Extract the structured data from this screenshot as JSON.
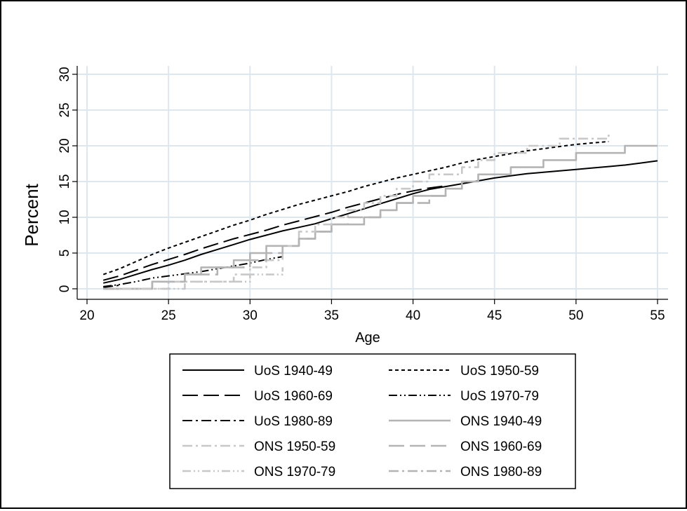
{
  "chart_data": {
    "type": "line",
    "title": "",
    "xlabel": "Age",
    "ylabel": "Percent",
    "xlim": [
      20,
      55
    ],
    "ylim": [
      0,
      30
    ],
    "xticks": [
      20,
      25,
      30,
      35,
      40,
      45,
      50,
      55
    ],
    "yticks": [
      0,
      5,
      10,
      15,
      20,
      25,
      30
    ],
    "grid": true,
    "legend_position": "bottom",
    "colors": {
      "uos": "#000000",
      "ons": "#b4b4b4",
      "grid": "#dde7ef",
      "axis": "#000000"
    },
    "series": [
      {
        "name": "UoS 1940-49",
        "style": "solid",
        "color": "#000000",
        "x": [
          21,
          22,
          23,
          24,
          25,
          26,
          27,
          28,
          29,
          30,
          31,
          32,
          33,
          34,
          35,
          36,
          37,
          38,
          39,
          40,
          41,
          42,
          43,
          44,
          45,
          46,
          47,
          48,
          49,
          50,
          51,
          52,
          53,
          54,
          55
        ],
        "y": [
          0.8,
          1.3,
          2.0,
          2.7,
          3.3,
          4.0,
          4.8,
          5.5,
          6.2,
          6.9,
          7.5,
          8.1,
          8.6,
          9.1,
          9.8,
          10.5,
          11.2,
          11.9,
          12.6,
          13.3,
          13.9,
          14.3,
          14.7,
          15.1,
          15.5,
          15.8,
          16.1,
          16.3,
          16.5,
          16.7,
          16.9,
          17.1,
          17.3,
          17.6,
          17.9
        ]
      },
      {
        "name": "UoS 1950-59",
        "style": "dot",
        "color": "#000000",
        "x": [
          21,
          22,
          23,
          24,
          25,
          26,
          27,
          28,
          29,
          30,
          31,
          32,
          33,
          34,
          35,
          36,
          37,
          38,
          39,
          40,
          41,
          42,
          43,
          44,
          45,
          46,
          47,
          48,
          49,
          50,
          51,
          52
        ],
        "y": [
          2.0,
          2.8,
          3.8,
          4.8,
          5.7,
          6.5,
          7.3,
          8.1,
          8.9,
          9.6,
          10.4,
          11.1,
          11.8,
          12.4,
          13.0,
          13.6,
          14.3,
          14.9,
          15.5,
          16.0,
          16.5,
          17.0,
          17.6,
          18.1,
          18.5,
          18.9,
          19.3,
          19.6,
          19.9,
          20.2,
          20.4,
          20.6
        ]
      },
      {
        "name": "UoS 1960-69",
        "style": "longdash",
        "color": "#000000",
        "x": [
          21,
          22,
          23,
          24,
          25,
          26,
          27,
          28,
          29,
          30,
          31,
          32,
          33,
          34,
          35,
          36,
          37,
          38,
          39,
          40,
          41,
          42
        ],
        "y": [
          1.2,
          1.8,
          2.6,
          3.4,
          4.1,
          4.8,
          5.6,
          6.3,
          7.0,
          7.6,
          8.2,
          8.9,
          9.5,
          10.1,
          10.7,
          11.4,
          12.0,
          12.6,
          13.2,
          13.7,
          14.1,
          14.4
        ]
      },
      {
        "name": "UoS 1970-79",
        "style": "dashdotdot",
        "color": "#000000",
        "x": [
          21,
          22,
          23,
          24,
          25,
          26,
          27,
          28,
          29,
          30,
          31,
          32
        ],
        "y": [
          0.3,
          0.6,
          1.0,
          1.5,
          1.8,
          2.1,
          2.4,
          2.8,
          3.2,
          3.6,
          4.1,
          4.5
        ]
      },
      {
        "name": "UoS 1980-89",
        "style": "dashdot",
        "color": "#000000",
        "x": [
          21,
          22
        ],
        "y": [
          0.2,
          0.5
        ]
      },
      {
        "name": "ONS 1940-49",
        "style": "solid",
        "color": "#b4b4b4",
        "x": [
          21,
          22,
          23,
          24,
          25,
          26,
          27,
          28,
          29,
          30,
          31,
          32,
          33,
          34,
          35,
          36,
          37,
          38,
          39,
          40,
          41,
          42,
          43,
          44,
          45,
          46,
          47,
          48,
          49,
          50,
          51,
          52,
          53,
          54,
          55
        ],
        "y": [
          0,
          0,
          0,
          1,
          1,
          2,
          3,
          3,
          4,
          5,
          6,
          6,
          7,
          8,
          9,
          9,
          10,
          11,
          12,
          13,
          13,
          14,
          15,
          16,
          16,
          17,
          17,
          18,
          18,
          19,
          19,
          19,
          20,
          20,
          20
        ],
        "step": true
      },
      {
        "name": "ONS 1950-59",
        "style": "dashdot",
        "color": "#c8c8c8",
        "x": [
          21,
          22,
          23,
          24,
          25,
          26,
          27,
          28,
          29,
          30,
          31,
          32,
          33,
          34,
          35,
          36,
          37,
          38,
          39,
          40,
          41,
          42,
          43,
          44,
          45,
          46,
          47,
          48,
          49,
          50,
          51,
          52
        ],
        "y": [
          0,
          0,
          0,
          0,
          1,
          1,
          1,
          1,
          2,
          3,
          4,
          6,
          8,
          9,
          10,
          11,
          12,
          13,
          14,
          15,
          16,
          16,
          17,
          18,
          19,
          19,
          20,
          20,
          21,
          21,
          21,
          22
        ],
        "step": true
      },
      {
        "name": "ONS 1960-69",
        "style": "longdash",
        "color": "#b4b4b4",
        "x": [
          21,
          22,
          23,
          24,
          25,
          26,
          27,
          28,
          29,
          30,
          31,
          32,
          33,
          34,
          35,
          36,
          37,
          38,
          39,
          40,
          41,
          42
        ],
        "y": [
          0,
          0,
          0,
          1,
          1,
          2,
          2,
          3,
          3,
          4,
          5,
          6,
          7,
          8,
          9,
          10,
          10,
          11,
          12,
          12,
          13,
          14
        ],
        "step": true
      },
      {
        "name": "ONS 1970-79",
        "style": "dashdotdot",
        "color": "#c8c8c8",
        "x": [
          21,
          22,
          23,
          24,
          25,
          26,
          27,
          28,
          29,
          30,
          31,
          32
        ],
        "y": [
          0,
          0,
          0,
          0,
          0,
          1,
          1,
          1,
          1,
          2,
          2,
          3
        ],
        "step": true
      },
      {
        "name": "ONS 1980-89",
        "style": "dashdot",
        "color": "#b4b4b4",
        "x": [
          21,
          22
        ],
        "y": [
          0,
          0
        ],
        "step": true
      }
    ]
  }
}
